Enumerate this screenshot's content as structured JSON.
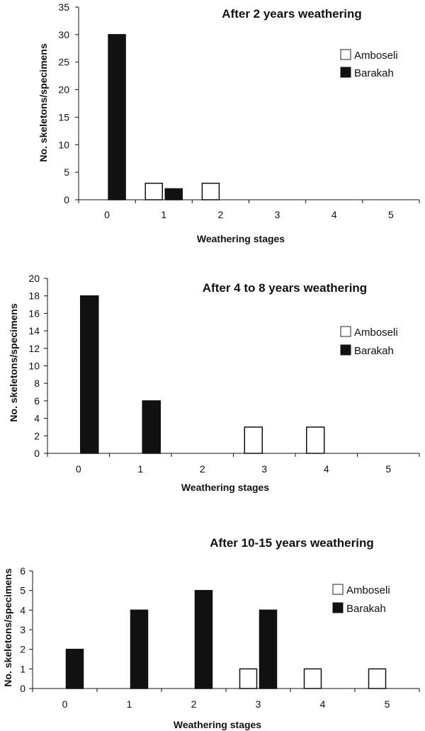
{
  "chart_data": [
    {
      "type": "bar",
      "title": "After 2 years weathering",
      "xlabel": "Weathering stages",
      "ylabel": "No. skeletons/specimens",
      "categories": [
        "0",
        "1",
        "2",
        "3",
        "4",
        "5"
      ],
      "ylim": [
        0,
        35
      ],
      "yticks": [
        "0",
        "5",
        "10",
        "15",
        "20",
        "25",
        "30",
        "35"
      ],
      "legend_position": "top-right",
      "series": [
        {
          "name": "Amboseli",
          "color": "#ffffff",
          "values": [
            0,
            3,
            3,
            0,
            0,
            0
          ]
        },
        {
          "name": "Barakah",
          "color": "#111111",
          "values": [
            30,
            2,
            0,
            0,
            0,
            0
          ]
        }
      ]
    },
    {
      "type": "bar",
      "title": "After 4 to 8 years weathering",
      "xlabel": "Weathering stages",
      "ylabel": "No. skeletons/specimens",
      "categories": [
        "0",
        "1",
        "2",
        "3",
        "4",
        "5"
      ],
      "ylim": [
        0,
        20
      ],
      "yticks": [
        "0",
        "2",
        "4",
        "6",
        "8",
        "10",
        "12",
        "14",
        "16",
        "18",
        "20"
      ],
      "legend_position": "top-right",
      "series": [
        {
          "name": "Amboseli",
          "color": "#ffffff",
          "values": [
            0,
            0,
            0,
            3,
            3,
            0
          ]
        },
        {
          "name": "Barakah",
          "color": "#111111",
          "values": [
            18,
            6,
            0,
            0,
            0,
            0
          ]
        }
      ]
    },
    {
      "type": "bar",
      "title": "After 10-15 years weathering",
      "xlabel": "Weathering stages",
      "ylabel": "No. skeletons/specimens",
      "categories": [
        "0",
        "1",
        "2",
        "3",
        "4",
        "5"
      ],
      "ylim": [
        0,
        6
      ],
      "yticks": [
        "0",
        "1",
        "2",
        "3",
        "4",
        "5",
        "6"
      ],
      "legend_position": "top-right",
      "series": [
        {
          "name": "Amboseli",
          "color": "#ffffff",
          "values": [
            0,
            0,
            0,
            1,
            1,
            1
          ]
        },
        {
          "name": "Barakah",
          "color": "#111111",
          "values": [
            2,
            4,
            5,
            4,
            0,
            0
          ]
        }
      ]
    }
  ]
}
